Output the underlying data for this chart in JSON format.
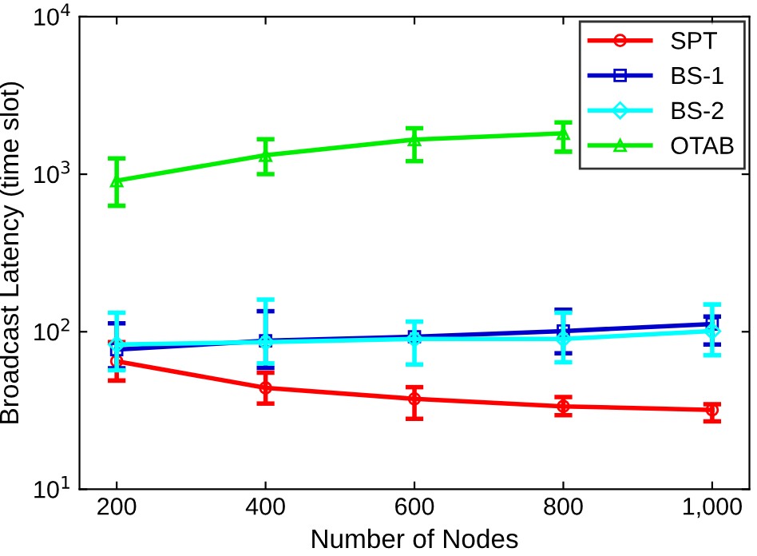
{
  "chart_data": {
    "type": "line",
    "xlabel": "Number of Nodes",
    "ylabel": "Broadcast Latency (time slot)",
    "x": [
      200,
      400,
      600,
      800,
      1000
    ],
    "series": [
      {
        "name": "SPT",
        "color": "#ff0000",
        "marker": "circle",
        "values": [
          65,
          44,
          37.5,
          33.6,
          31.9
        ],
        "errors": [
          [
            49,
            86
          ],
          [
            35,
            55
          ],
          [
            28,
            44.5
          ],
          [
            29.5,
            38.5
          ],
          [
            27,
            34.7
          ]
        ]
      },
      {
        "name": "BS-1",
        "color": "#0000cc",
        "marker": "square",
        "values": [
          77,
          87.6,
          93,
          101,
          112
        ],
        "errors": [
          [
            58.6,
            113
          ],
          [
            59,
            135
          ],
          null,
          [
            73,
            138
          ],
          [
            83,
            125
          ]
        ]
      },
      {
        "name": "BS-2",
        "color": "#00ffff",
        "marker": "diamond",
        "values": [
          83,
          86,
          90,
          90,
          101
        ],
        "errors": [
          [
            57,
            132
          ],
          [
            63,
            160
          ],
          [
            62,
            116
          ],
          [
            64,
            132
          ],
          [
            71,
            149
          ]
        ]
      },
      {
        "name": "OTAB",
        "color": "#00ee00",
        "marker": "triangle",
        "values": [
          910,
          1320,
          1660,
          1820,
          null
        ],
        "errors": [
          [
            630,
            1260
          ],
          [
            1000,
            1670
          ],
          [
            1210,
            1960
          ],
          [
            1390,
            2130
          ],
          null
        ]
      }
    ],
    "log": "y",
    "xlim": [
      150,
      1050
    ],
    "ylim": [
      10,
      10000
    ],
    "xticks": [
      200,
      400,
      600,
      800,
      {
        "value": 1000,
        "label": "1,000"
      }
    ],
    "yticks": [
      {
        "value": 10,
        "label": "10$^{1}$"
      },
      {
        "value": 100,
        "label": "10$^{2}$"
      },
      {
        "value": 1000,
        "label": "10$^{3}$"
      },
      {
        "value": 10000,
        "label": "10$^{4}$"
      }
    ],
    "legend": "top right",
    "grid": false
  }
}
